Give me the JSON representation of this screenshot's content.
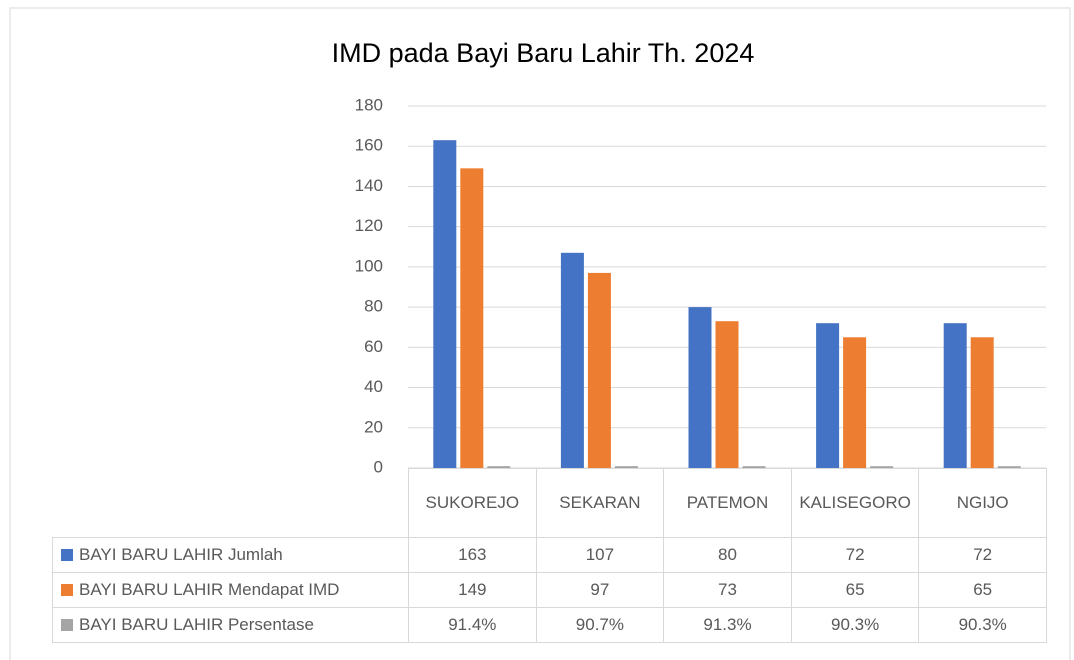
{
  "chart_data": {
    "type": "bar",
    "title": "IMD pada Bayi Baru Lahir Th. 2024",
    "categories": [
      "SUKOREJO",
      "SEKARAN",
      "PATEMON",
      "KALISEGORO",
      "NGIJO"
    ],
    "series": [
      {
        "name": "BAYI BARU LAHIR Jumlah",
        "color": "#4472c4",
        "values": [
          163,
          107,
          80,
          72,
          72
        ]
      },
      {
        "name": "BAYI BARU LAHIR Mendapat IMD",
        "color": "#ed7d31",
        "values": [
          149,
          97,
          73,
          65,
          65
        ]
      },
      {
        "name": "BAYI BARU LAHIR Persentase",
        "color": "#a5a5a5",
        "values": [
          0.914,
          0.907,
          0.913,
          0.903,
          0.903
        ],
        "value_labels": [
          "91.4%",
          "90.7%",
          "91.3%",
          "90.3%",
          "90.3%"
        ]
      }
    ],
    "ylim": [
      0,
      180
    ],
    "yticks": [
      0,
      20,
      40,
      60,
      80,
      100,
      120,
      140,
      160,
      180
    ],
    "grid": true
  }
}
